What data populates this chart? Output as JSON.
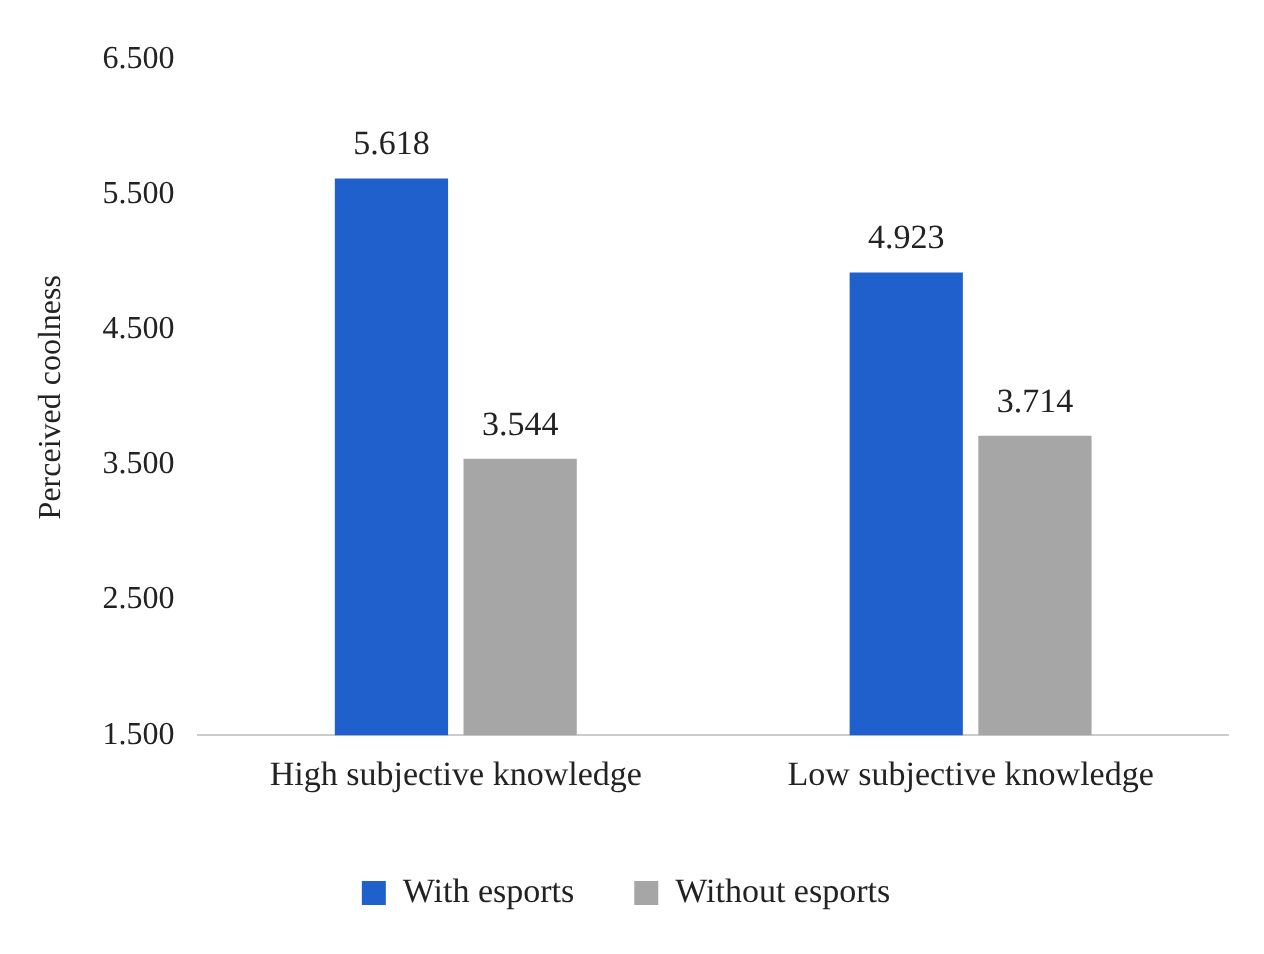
{
  "chart_data": {
    "type": "bar",
    "ylabel": "Perceived coolness",
    "categories": [
      "High subjective knowledge",
      "Low subjective knowledge"
    ],
    "series": [
      {
        "name": "With esports",
        "color": "#2060cc",
        "values": [
          5.618,
          4.923
        ]
      },
      {
        "name": "Without esports",
        "color": "#a6a6a6",
        "values": [
          3.544,
          3.714
        ]
      }
    ],
    "ylim": [
      1.5,
      6.5
    ],
    "yticks": [
      {
        "value": 1.5,
        "label": "1.500"
      },
      {
        "value": 2.5,
        "label": "2.500"
      },
      {
        "value": 3.5,
        "label": "3.500"
      },
      {
        "value": 4.5,
        "label": "4.500"
      },
      {
        "value": 5.5,
        "label": "5.500"
      },
      {
        "value": 6.5,
        "label": "6.500"
      }
    ],
    "grid": false,
    "legend": "bottom",
    "data_labels": true
  }
}
